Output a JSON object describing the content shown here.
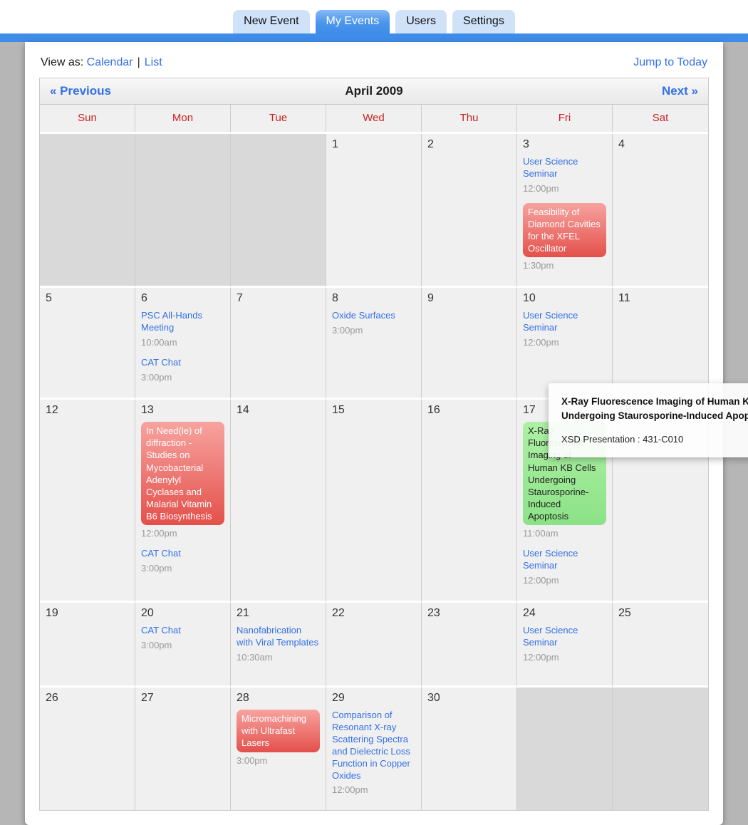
{
  "tabs": [
    {
      "label": "New Event",
      "active": false
    },
    {
      "label": "My Events",
      "active": true
    },
    {
      "label": "Users",
      "active": false
    },
    {
      "label": "Settings",
      "active": false
    }
  ],
  "toolbar": {
    "view_as_label": "View as:",
    "view_calendar": "Calendar",
    "separator": "|",
    "view_list": "List",
    "jump_to_today": "Jump to Today"
  },
  "calendar": {
    "title": "April 2009",
    "prev_label": "« Previous",
    "next_label": "Next »",
    "day_headers": [
      "Sun",
      "Mon",
      "Tue",
      "Wed",
      "Thu",
      "Fri",
      "Sat"
    ],
    "weeks": [
      [
        {
          "day": "",
          "out": true
        },
        {
          "day": "",
          "out": true
        },
        {
          "day": "",
          "out": true
        },
        {
          "day": "1",
          "out": false
        },
        {
          "day": "2",
          "out": false
        },
        {
          "day": "3",
          "out": false,
          "events": [
            {
              "type": "link",
              "title": "User Science Seminar",
              "time": "12:00pm"
            },
            {
              "type": "chip-red",
              "title": "Feasibility of Diamond Cavities for the XFEL Oscillator",
              "time": "1:30pm"
            }
          ]
        },
        {
          "day": "4",
          "out": false
        }
      ],
      [
        {
          "day": "5",
          "out": false
        },
        {
          "day": "6",
          "out": false,
          "events": [
            {
              "type": "link",
              "title": "PSC All-Hands Meeting",
              "time": "10:00am"
            },
            {
              "type": "link",
              "title": "CAT Chat",
              "time": "3:00pm"
            }
          ]
        },
        {
          "day": "7",
          "out": false
        },
        {
          "day": "8",
          "out": false,
          "events": [
            {
              "type": "link",
              "title": "Oxide Surfaces",
              "time": "3:00pm"
            }
          ]
        },
        {
          "day": "9",
          "out": false
        },
        {
          "day": "10",
          "out": false,
          "events": [
            {
              "type": "link",
              "title": "User Science Seminar",
              "time": "12:00pm"
            }
          ]
        },
        {
          "day": "11",
          "out": false
        }
      ],
      [
        {
          "day": "12",
          "out": false
        },
        {
          "day": "13",
          "out": false,
          "events": [
            {
              "type": "chip-red",
              "title": "In Need(le) of diffraction - Studies on Mycobacterial Adenylyl Cyclases and Malarial Vitamin B6 Biosynthesis",
              "time": "12:00pm"
            },
            {
              "type": "link",
              "title": "CAT Chat",
              "time": "3:00pm"
            }
          ]
        },
        {
          "day": "14",
          "out": false
        },
        {
          "day": "15",
          "out": false
        },
        {
          "day": "16",
          "out": false
        },
        {
          "day": "17",
          "out": false,
          "events": [
            {
              "type": "chip-green",
              "title": "X-Ray Fluorescence Imaging of Human KB Cells Undergoing Staurosporine-Induced Apoptosis",
              "time": "11:00am"
            },
            {
              "type": "link",
              "title": "User Science Seminar",
              "time": "12:00pm"
            }
          ]
        },
        {
          "day": "18",
          "out": false
        }
      ],
      [
        {
          "day": "19",
          "out": false
        },
        {
          "day": "20",
          "out": false,
          "events": [
            {
              "type": "link",
              "title": "CAT Chat",
              "time": "3:00pm"
            }
          ]
        },
        {
          "day": "21",
          "out": false,
          "events": [
            {
              "type": "link",
              "title": "Nanofabrication with Viral Templates",
              "time": "10:30am"
            }
          ]
        },
        {
          "day": "22",
          "out": false
        },
        {
          "day": "23",
          "out": false
        },
        {
          "day": "24",
          "out": false,
          "events": [
            {
              "type": "link",
              "title": "User Science Seminar",
              "time": "12:00pm"
            }
          ]
        },
        {
          "day": "25",
          "out": false
        }
      ],
      [
        {
          "day": "26",
          "out": false
        },
        {
          "day": "27",
          "out": false
        },
        {
          "day": "28",
          "out": false,
          "events": [
            {
              "type": "chip-red",
              "title": "Micromachining with Ultrafast Lasers",
              "time": "3:00pm"
            }
          ]
        },
        {
          "day": "29",
          "out": false,
          "events": [
            {
              "type": "link",
              "title": "Comparison of Resonant X-ray Scattering Spectra and Dielectric Loss Function in Copper Oxides",
              "time": "12:00pm"
            }
          ]
        },
        {
          "day": "30",
          "out": false
        },
        {
          "day": "",
          "out": true
        },
        {
          "day": "",
          "out": true
        }
      ]
    ]
  },
  "tooltip": {
    "title": "X-Ray Fluorescence Imaging of Human KB Cells Undergoing Staurosporine-Induced Apoptosis",
    "detail": "XSD Presentation : 431-C010"
  },
  "colors": {
    "accent_blue": "#3f8de9",
    "link_blue": "#3370e8",
    "tab_inactive_bg": "#cfe2f8",
    "day_header_red": "#cc2222",
    "chip_red_top": "#f7a39f",
    "chip_red_bottom": "#e4504b",
    "chip_green_top": "#aef0a4",
    "chip_green_bottom": "#8ce287",
    "cell_bg": "#f0f0f0",
    "out_cell_bg": "#d9d9d9",
    "time_gray": "#999999"
  }
}
